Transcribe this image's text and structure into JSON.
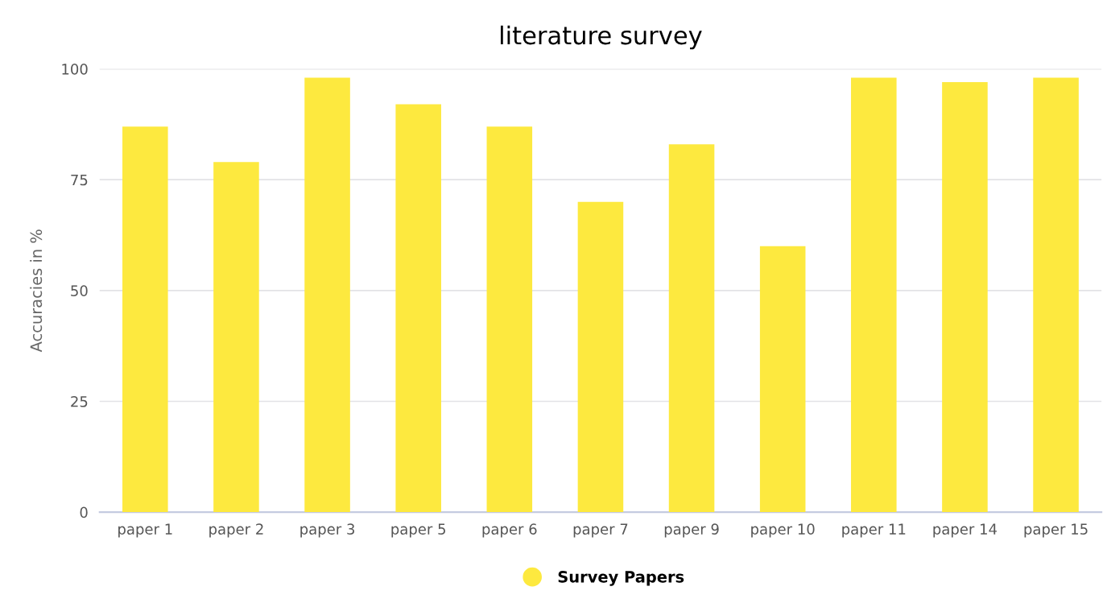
{
  "chart_data": {
    "type": "bar",
    "title": "literature survey",
    "ylabel": "Accuracies in %",
    "categories": [
      "paper 1",
      "paper 2",
      "paper 3",
      "paper 5",
      "paper 6",
      "paper 7",
      "paper 9",
      "paper 10",
      "paper 11",
      "paper 14",
      "paper 15"
    ],
    "series": [
      {
        "name": "Survey Papers",
        "color": "#fde93f",
        "values": [
          87,
          79,
          98,
          92,
          87,
          70,
          83,
          60,
          98,
          97,
          98
        ]
      }
    ],
    "ylim": [
      0,
      100
    ],
    "yticks": [
      0,
      25,
      50,
      75,
      100
    ],
    "grid": "y",
    "legend": "bottom"
  }
}
